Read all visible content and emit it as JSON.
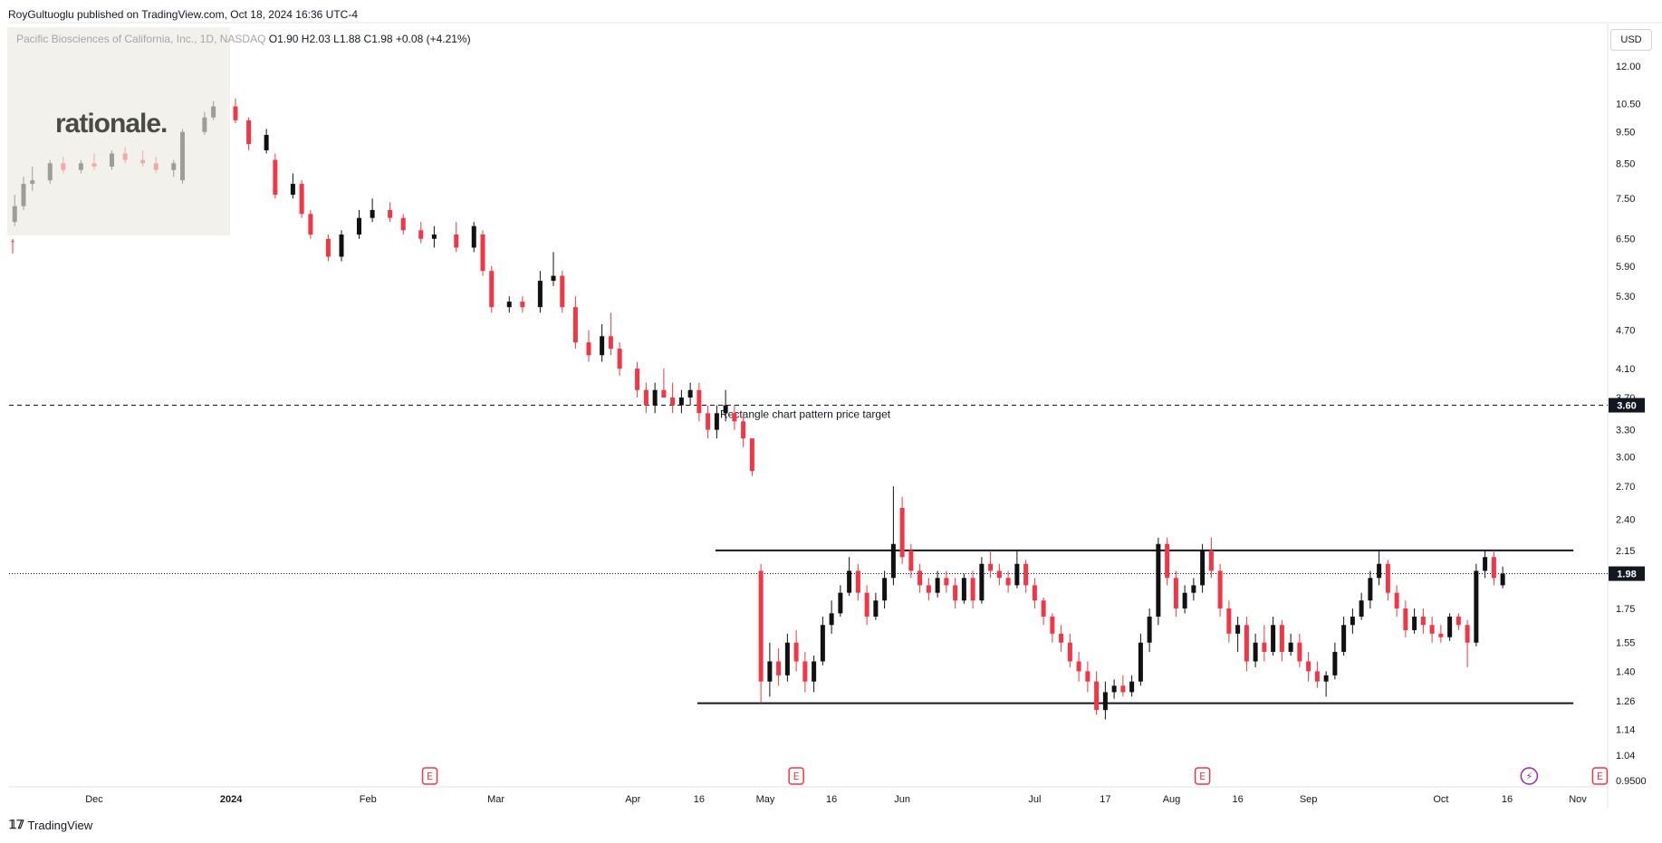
{
  "header": {
    "published_by": "RoyGultuoglu published on TradingView.com, Oct 18, 2024 16:36 UTC-4"
  },
  "symbol": {
    "name": "Pacific Biosciences of California, Inc., 1D, NASDAQ",
    "ohlc": "O1.90  H2.03  L1.88  C1.98  +0.08 (+4.21%)"
  },
  "logo": {
    "text": "rationale."
  },
  "currency": "USD",
  "footer": {
    "brand": "TradingView"
  },
  "colors": {
    "up": "#111111",
    "down": "#f23645",
    "watermark": "#ece9e1",
    "event_earnings": "#f23645",
    "event_dividend": "#9c27b0"
  },
  "chart_data": {
    "type": "candlestick",
    "title": "Pacific Biosciences of California, Inc., 1D, NASDAQ",
    "ylabel": "USD",
    "yscale": "log",
    "ylim": [
      0.95,
      12.6
    ],
    "price_ticks": [
      12.0,
      10.5,
      9.5,
      8.5,
      7.5,
      6.5,
      5.9,
      5.3,
      4.7,
      4.1,
      3.7,
      3.3,
      3.0,
      2.7,
      2.4,
      2.15,
      1.75,
      1.55,
      1.4,
      1.26,
      1.14,
      1.04,
      0.95
    ],
    "price_tick_labels": [
      "12.00",
      "10.50",
      "9.50",
      "8.50",
      "7.50",
      "6.50",
      "5.90",
      "5.30",
      "4.70",
      "4.10",
      "3.70",
      "3.30",
      "3.00",
      "2.70",
      "2.40",
      "2.15",
      "1.75",
      "1.55",
      "1.40",
      "1.26",
      "1.14",
      "1.04",
      "0.9500"
    ],
    "x_ticks": [
      "Dec",
      "2024",
      "Feb",
      "Mar",
      "Apr",
      "16",
      "May",
      "16",
      "Jun",
      "Jul",
      "17",
      "Aug",
      "16",
      "Sep",
      "Oct",
      "16",
      "Nov"
    ],
    "x_tick_dates": [
      "2023-12-01",
      "2024-01-01",
      "2024-02-01",
      "2024-03-01",
      "2024-04-01",
      "2024-04-16",
      "2024-05-01",
      "2024-05-16",
      "2024-06-01",
      "2024-07-01",
      "2024-07-17",
      "2024-08-01",
      "2024-08-16",
      "2024-09-01",
      "2024-10-01",
      "2024-10-16",
      "2024-11-01"
    ],
    "last_price": {
      "value": 1.98,
      "label": "1.98"
    },
    "target_line": {
      "value": 3.6,
      "label": "3.60",
      "annotation": "Rectangle chart pattern price target"
    },
    "rectangle": {
      "resistance": 2.15,
      "support": 1.25,
      "start": "2024-04-16",
      "end": "2024-10-31"
    },
    "candles": [
      {
        "date": "2023-11-13",
        "o": 6.9,
        "h": 7.6,
        "l": 6.8,
        "c": 7.3
      },
      {
        "date": "2023-11-15",
        "o": 7.3,
        "h": 8.1,
        "l": 7.2,
        "c": 7.9
      },
      {
        "date": "2023-11-17",
        "o": 7.9,
        "h": 8.4,
        "l": 7.7,
        "c": 8.0
      },
      {
        "date": "2023-11-21",
        "o": 8.0,
        "h": 8.6,
        "l": 7.9,
        "c": 8.5
      },
      {
        "date": "2023-11-24",
        "o": 8.5,
        "h": 8.7,
        "l": 8.2,
        "c": 8.3
      },
      {
        "date": "2023-11-28",
        "o": 8.3,
        "h": 8.6,
        "l": 8.2,
        "c": 8.5
      },
      {
        "date": "2023-12-01",
        "o": 8.5,
        "h": 8.8,
        "l": 8.3,
        "c": 8.4
      },
      {
        "date": "2023-12-05",
        "o": 8.4,
        "h": 8.9,
        "l": 8.3,
        "c": 8.8
      },
      {
        "date": "2023-12-08",
        "o": 8.8,
        "h": 9.0,
        "l": 8.5,
        "c": 8.6
      },
      {
        "date": "2023-12-12",
        "o": 8.6,
        "h": 8.9,
        "l": 8.4,
        "c": 8.5
      },
      {
        "date": "2023-12-15",
        "o": 8.5,
        "h": 8.7,
        "l": 8.2,
        "c": 8.3
      },
      {
        "date": "2023-12-19",
        "o": 8.3,
        "h": 8.6,
        "l": 8.1,
        "c": 8.5
      },
      {
        "date": "2023-12-21",
        "o": 8.0,
        "h": 9.6,
        "l": 7.9,
        "c": 9.5
      },
      {
        "date": "2023-12-26",
        "o": 9.5,
        "h": 10.2,
        "l": 9.4,
        "c": 10.0
      },
      {
        "date": "2023-12-28",
        "o": 10.0,
        "h": 10.6,
        "l": 9.9,
        "c": 10.4
      },
      {
        "date": "2024-01-02",
        "o": 10.4,
        "h": 10.7,
        "l": 9.8,
        "c": 9.9
      },
      {
        "date": "2024-01-05",
        "o": 9.9,
        "h": 10.0,
        "l": 8.9,
        "c": 9.1
      },
      {
        "date": "2024-01-09",
        "o": 8.9,
        "h": 9.6,
        "l": 8.8,
        "c": 9.4
      },
      {
        "date": "2024-01-11",
        "o": 8.6,
        "h": 8.8,
        "l": 7.5,
        "c": 7.6
      },
      {
        "date": "2024-01-15",
        "o": 7.6,
        "h": 8.2,
        "l": 7.5,
        "c": 7.9
      },
      {
        "date": "2024-01-17",
        "o": 7.9,
        "h": 8.0,
        "l": 7.0,
        "c": 7.1
      },
      {
        "date": "2024-01-19",
        "o": 7.1,
        "h": 7.2,
        "l": 6.5,
        "c": 6.6
      },
      {
        "date": "2024-01-23",
        "o": 6.5,
        "h": 6.6,
        "l": 6.0,
        "c": 6.1
      },
      {
        "date": "2024-01-26",
        "o": 6.1,
        "h": 6.7,
        "l": 6.0,
        "c": 6.6
      },
      {
        "date": "2024-01-30",
        "o": 6.6,
        "h": 7.2,
        "l": 6.5,
        "c": 7.0
      },
      {
        "date": "2024-02-02",
        "o": 7.0,
        "h": 7.5,
        "l": 6.9,
        "c": 7.2
      },
      {
        "date": "2024-02-06",
        "o": 7.2,
        "h": 7.4,
        "l": 6.9,
        "c": 7.0
      },
      {
        "date": "2024-02-09",
        "o": 7.0,
        "h": 7.1,
        "l": 6.6,
        "c": 6.7
      },
      {
        "date": "2024-02-13",
        "o": 6.7,
        "h": 6.9,
        "l": 6.4,
        "c": 6.5
      },
      {
        "date": "2024-02-16",
        "o": 6.5,
        "h": 6.8,
        "l": 6.3,
        "c": 6.6
      },
      {
        "date": "2024-02-21",
        "o": 6.6,
        "h": 6.9,
        "l": 6.2,
        "c": 6.3
      },
      {
        "date": "2024-02-25",
        "o": 6.3,
        "h": 6.9,
        "l": 6.2,
        "c": 6.8
      },
      {
        "date": "2024-02-27",
        "o": 6.6,
        "h": 6.7,
        "l": 5.7,
        "c": 5.8
      },
      {
        "date": "2024-02-29",
        "o": 5.8,
        "h": 5.9,
        "l": 5.0,
        "c": 5.1
      },
      {
        "date": "2024-03-04",
        "o": 5.1,
        "h": 5.3,
        "l": 5.0,
        "c": 5.2
      },
      {
        "date": "2024-03-07",
        "o": 5.2,
        "h": 5.3,
        "l": 5.0,
        "c": 5.1
      },
      {
        "date": "2024-03-11",
        "o": 5.1,
        "h": 5.8,
        "l": 5.0,
        "c": 5.6
      },
      {
        "date": "2024-03-14",
        "o": 5.6,
        "h": 6.2,
        "l": 5.5,
        "c": 5.7
      },
      {
        "date": "2024-03-16",
        "o": 5.7,
        "h": 5.8,
        "l": 5.0,
        "c": 5.1
      },
      {
        "date": "2024-03-19",
        "o": 5.1,
        "h": 5.3,
        "l": 4.4,
        "c": 4.5
      },
      {
        "date": "2024-03-22",
        "o": 4.5,
        "h": 4.7,
        "l": 4.2,
        "c": 4.3
      },
      {
        "date": "2024-03-25",
        "o": 4.3,
        "h": 4.8,
        "l": 4.2,
        "c": 4.6
      },
      {
        "date": "2024-03-27",
        "o": 4.6,
        "h": 5.0,
        "l": 4.3,
        "c": 4.4
      },
      {
        "date": "2024-03-29",
        "o": 4.4,
        "h": 4.5,
        "l": 4.0,
        "c": 4.1
      },
      {
        "date": "2024-04-02",
        "o": 4.1,
        "h": 4.2,
        "l": 3.7,
        "c": 3.8
      },
      {
        "date": "2024-04-04",
        "o": 3.8,
        "h": 3.9,
        "l": 3.5,
        "c": 3.6
      },
      {
        "date": "2024-04-06",
        "o": 3.6,
        "h": 3.9,
        "l": 3.5,
        "c": 3.8
      },
      {
        "date": "2024-04-08",
        "o": 3.8,
        "h": 4.1,
        "l": 3.7,
        "c": 3.7
      },
      {
        "date": "2024-04-10",
        "o": 3.7,
        "h": 3.9,
        "l": 3.5,
        "c": 3.6
      },
      {
        "date": "2024-04-12",
        "o": 3.6,
        "h": 3.8,
        "l": 3.5,
        "c": 3.7
      },
      {
        "date": "2024-04-14",
        "o": 3.7,
        "h": 3.9,
        "l": 3.6,
        "c": 3.8
      },
      {
        "date": "2024-04-16",
        "o": 3.8,
        "h": 3.9,
        "l": 3.4,
        "c": 3.5
      },
      {
        "date": "2024-04-18",
        "o": 3.5,
        "h": 3.6,
        "l": 3.2,
        "c": 3.3
      },
      {
        "date": "2024-04-20",
        "o": 3.3,
        "h": 3.6,
        "l": 3.2,
        "c": 3.5
      },
      {
        "date": "2024-04-22",
        "o": 3.5,
        "h": 3.8,
        "l": 3.4,
        "c": 3.6
      },
      {
        "date": "2024-04-24",
        "o": 3.5,
        "h": 3.6,
        "l": 3.3,
        "c": 3.4
      },
      {
        "date": "2024-04-26",
        "o": 3.4,
        "h": 3.5,
        "l": 3.1,
        "c": 3.2
      },
      {
        "date": "2024-04-28",
        "o": 3.2,
        "h": 3.2,
        "l": 2.8,
        "c": 2.85
      },
      {
        "date": "2024-04-30",
        "o": 2.0,
        "h": 2.05,
        "l": 1.25,
        "c": 1.35
      },
      {
        "date": "2024-05-02",
        "o": 1.35,
        "h": 1.55,
        "l": 1.28,
        "c": 1.45
      },
      {
        "date": "2024-05-04",
        "o": 1.45,
        "h": 1.52,
        "l": 1.33,
        "c": 1.38
      },
      {
        "date": "2024-05-06",
        "o": 1.38,
        "h": 1.6,
        "l": 1.35,
        "c": 1.55
      },
      {
        "date": "2024-05-08",
        "o": 1.55,
        "h": 1.62,
        "l": 1.4,
        "c": 1.45
      },
      {
        "date": "2024-05-10",
        "o": 1.45,
        "h": 1.5,
        "l": 1.3,
        "c": 1.35
      },
      {
        "date": "2024-05-12",
        "o": 1.35,
        "h": 1.48,
        "l": 1.3,
        "c": 1.45
      },
      {
        "date": "2024-05-14",
        "o": 1.45,
        "h": 1.7,
        "l": 1.43,
        "c": 1.65
      },
      {
        "date": "2024-05-16",
        "o": 1.65,
        "h": 1.8,
        "l": 1.6,
        "c": 1.72
      },
      {
        "date": "2024-05-18",
        "o": 1.72,
        "h": 1.9,
        "l": 1.7,
        "c": 1.85
      },
      {
        "date": "2024-05-20",
        "o": 1.85,
        "h": 2.1,
        "l": 1.83,
        "c": 2.0
      },
      {
        "date": "2024-05-22",
        "o": 2.0,
        "h": 2.05,
        "l": 1.8,
        "c": 1.85
      },
      {
        "date": "2024-05-24",
        "o": 1.85,
        "h": 1.9,
        "l": 1.65,
        "c": 1.7
      },
      {
        "date": "2024-05-26",
        "o": 1.7,
        "h": 1.85,
        "l": 1.68,
        "c": 1.8
      },
      {
        "date": "2024-05-28",
        "o": 1.8,
        "h": 2.0,
        "l": 1.75,
        "c": 1.95
      },
      {
        "date": "2024-05-30",
        "o": 1.95,
        "h": 2.7,
        "l": 1.9,
        "c": 2.2
      },
      {
        "date": "2024-06-01",
        "o": 2.5,
        "h": 2.6,
        "l": 2.05,
        "c": 2.1
      },
      {
        "date": "2024-06-03",
        "o": 2.15,
        "h": 2.2,
        "l": 1.95,
        "c": 2.0
      },
      {
        "date": "2024-06-05",
        "o": 2.0,
        "h": 2.05,
        "l": 1.85,
        "c": 1.9
      },
      {
        "date": "2024-06-07",
        "o": 1.9,
        "h": 1.95,
        "l": 1.8,
        "c": 1.85
      },
      {
        "date": "2024-06-09",
        "o": 1.85,
        "h": 2.0,
        "l": 1.82,
        "c": 1.95
      },
      {
        "date": "2024-06-11",
        "o": 1.95,
        "h": 2.0,
        "l": 1.85,
        "c": 1.9
      },
      {
        "date": "2024-06-13",
        "o": 1.9,
        "h": 1.95,
        "l": 1.75,
        "c": 1.8
      },
      {
        "date": "2024-06-15",
        "o": 1.8,
        "h": 1.98,
        "l": 1.78,
        "c": 1.95
      },
      {
        "date": "2024-06-17",
        "o": 1.95,
        "h": 2.0,
        "l": 1.75,
        "c": 1.8
      },
      {
        "date": "2024-06-19",
        "o": 1.8,
        "h": 2.1,
        "l": 1.78,
        "c": 2.05
      },
      {
        "date": "2024-06-21",
        "o": 2.05,
        "h": 2.15,
        "l": 1.95,
        "c": 2.0
      },
      {
        "date": "2024-06-23",
        "o": 2.0,
        "h": 2.05,
        "l": 1.9,
        "c": 1.95
      },
      {
        "date": "2024-06-25",
        "o": 1.95,
        "h": 2.0,
        "l": 1.85,
        "c": 1.9
      },
      {
        "date": "2024-06-27",
        "o": 1.9,
        "h": 2.15,
        "l": 1.88,
        "c": 2.05
      },
      {
        "date": "2024-06-29",
        "o": 2.05,
        "h": 2.08,
        "l": 1.85,
        "c": 1.9
      },
      {
        "date": "2024-07-01",
        "o": 1.9,
        "h": 1.95,
        "l": 1.75,
        "c": 1.8
      },
      {
        "date": "2024-07-03",
        "o": 1.8,
        "h": 1.82,
        "l": 1.65,
        "c": 1.7
      },
      {
        "date": "2024-07-05",
        "o": 1.7,
        "h": 1.72,
        "l": 1.55,
        "c": 1.6
      },
      {
        "date": "2024-07-07",
        "o": 1.6,
        "h": 1.65,
        "l": 1.5,
        "c": 1.55
      },
      {
        "date": "2024-07-09",
        "o": 1.55,
        "h": 1.6,
        "l": 1.42,
        "c": 1.45
      },
      {
        "date": "2024-07-11",
        "o": 1.45,
        "h": 1.5,
        "l": 1.35,
        "c": 1.4
      },
      {
        "date": "2024-07-13",
        "o": 1.4,
        "h": 1.45,
        "l": 1.3,
        "c": 1.35
      },
      {
        "date": "2024-07-15",
        "o": 1.35,
        "h": 1.4,
        "l": 1.2,
        "c": 1.22
      },
      {
        "date": "2024-07-17",
        "o": 1.22,
        "h": 1.35,
        "l": 1.18,
        "c": 1.3
      },
      {
        "date": "2024-07-19",
        "o": 1.3,
        "h": 1.36,
        "l": 1.27,
        "c": 1.33
      },
      {
        "date": "2024-07-21",
        "o": 1.33,
        "h": 1.38,
        "l": 1.28,
        "c": 1.3
      },
      {
        "date": "2024-07-23",
        "o": 1.3,
        "h": 1.38,
        "l": 1.28,
        "c": 1.35
      },
      {
        "date": "2024-07-25",
        "o": 1.35,
        "h": 1.6,
        "l": 1.33,
        "c": 1.55
      },
      {
        "date": "2024-07-27",
        "o": 1.55,
        "h": 1.75,
        "l": 1.5,
        "c": 1.7
      },
      {
        "date": "2024-07-29",
        "o": 1.7,
        "h": 2.25,
        "l": 1.65,
        "c": 2.2
      },
      {
        "date": "2024-07-31",
        "o": 2.2,
        "h": 2.25,
        "l": 1.9,
        "c": 1.95
      },
      {
        "date": "2024-08-02",
        "o": 1.95,
        "h": 2.0,
        "l": 1.7,
        "c": 1.75
      },
      {
        "date": "2024-08-04",
        "o": 1.75,
        "h": 1.9,
        "l": 1.72,
        "c": 1.85
      },
      {
        "date": "2024-08-06",
        "o": 1.85,
        "h": 1.95,
        "l": 1.8,
        "c": 1.9
      },
      {
        "date": "2024-08-08",
        "o": 1.9,
        "h": 2.2,
        "l": 1.85,
        "c": 2.15
      },
      {
        "date": "2024-08-10",
        "o": 2.15,
        "h": 2.25,
        "l": 1.95,
        "c": 2.0
      },
      {
        "date": "2024-08-12",
        "o": 2.0,
        "h": 2.05,
        "l": 1.7,
        "c": 1.75
      },
      {
        "date": "2024-08-14",
        "o": 1.75,
        "h": 1.8,
        "l": 1.55,
        "c": 1.6
      },
      {
        "date": "2024-08-16",
        "o": 1.6,
        "h": 1.7,
        "l": 1.5,
        "c": 1.65
      },
      {
        "date": "2024-08-18",
        "o": 1.65,
        "h": 1.7,
        "l": 1.4,
        "c": 1.45
      },
      {
        "date": "2024-08-20",
        "o": 1.45,
        "h": 1.6,
        "l": 1.42,
        "c": 1.55
      },
      {
        "date": "2024-08-22",
        "o": 1.55,
        "h": 1.65,
        "l": 1.45,
        "c": 1.5
      },
      {
        "date": "2024-08-24",
        "o": 1.5,
        "h": 1.7,
        "l": 1.48,
        "c": 1.65
      },
      {
        "date": "2024-08-26",
        "o": 1.65,
        "h": 1.68,
        "l": 1.45,
        "c": 1.5
      },
      {
        "date": "2024-08-28",
        "o": 1.5,
        "h": 1.6,
        "l": 1.48,
        "c": 1.55
      },
      {
        "date": "2024-08-30",
        "o": 1.55,
        "h": 1.6,
        "l": 1.42,
        "c": 1.45
      },
      {
        "date": "2024-09-01",
        "o": 1.45,
        "h": 1.5,
        "l": 1.35,
        "c": 1.4
      },
      {
        "date": "2024-09-03",
        "o": 1.4,
        "h": 1.45,
        "l": 1.32,
        "c": 1.35
      },
      {
        "date": "2024-09-05",
        "o": 1.35,
        "h": 1.4,
        "l": 1.28,
        "c": 1.38
      },
      {
        "date": "2024-09-07",
        "o": 1.38,
        "h": 1.55,
        "l": 1.36,
        "c": 1.5
      },
      {
        "date": "2024-09-09",
        "o": 1.5,
        "h": 1.7,
        "l": 1.48,
        "c": 1.65
      },
      {
        "date": "2024-09-11",
        "o": 1.65,
        "h": 1.75,
        "l": 1.6,
        "c": 1.7
      },
      {
        "date": "2024-09-13",
        "o": 1.7,
        "h": 1.85,
        "l": 1.68,
        "c": 1.8
      },
      {
        "date": "2024-09-15",
        "o": 1.8,
        "h": 2.0,
        "l": 1.75,
        "c": 1.95
      },
      {
        "date": "2024-09-17",
        "o": 1.95,
        "h": 2.15,
        "l": 1.9,
        "c": 2.05
      },
      {
        "date": "2024-09-19",
        "o": 2.05,
        "h": 2.08,
        "l": 1.8,
        "c": 1.85
      },
      {
        "date": "2024-09-21",
        "o": 1.85,
        "h": 1.9,
        "l": 1.7,
        "c": 1.75
      },
      {
        "date": "2024-09-23",
        "o": 1.75,
        "h": 1.8,
        "l": 1.58,
        "c": 1.62
      },
      {
        "date": "2024-09-25",
        "o": 1.62,
        "h": 1.75,
        "l": 1.6,
        "c": 1.7
      },
      {
        "date": "2024-09-27",
        "o": 1.7,
        "h": 1.75,
        "l": 1.6,
        "c": 1.65
      },
      {
        "date": "2024-09-29",
        "o": 1.65,
        "h": 1.7,
        "l": 1.55,
        "c": 1.6
      },
      {
        "date": "2024-10-01",
        "o": 1.6,
        "h": 1.65,
        "l": 1.55,
        "c": 1.58
      },
      {
        "date": "2024-10-03",
        "o": 1.58,
        "h": 1.72,
        "l": 1.56,
        "c": 1.7
      },
      {
        "date": "2024-10-05",
        "o": 1.7,
        "h": 1.72,
        "l": 1.62,
        "c": 1.65
      },
      {
        "date": "2024-10-07",
        "o": 1.65,
        "h": 1.68,
        "l": 1.42,
        "c": 1.55
      },
      {
        "date": "2024-10-09",
        "o": 1.55,
        "h": 2.05,
        "l": 1.53,
        "c": 2.0
      },
      {
        "date": "2024-10-11",
        "o": 2.0,
        "h": 2.15,
        "l": 1.95,
        "c": 2.1
      },
      {
        "date": "2024-10-13",
        "o": 2.1,
        "h": 2.15,
        "l": 1.9,
        "c": 1.95
      },
      {
        "date": "2024-10-15",
        "o": 1.9,
        "h": 2.03,
        "l": 1.88,
        "c": 1.98
      }
    ],
    "events": [
      {
        "type": "earnings",
        "date": "2024-02-15",
        "label": "E"
      },
      {
        "type": "earnings",
        "date": "2024-05-08",
        "label": "E"
      },
      {
        "type": "earnings",
        "date": "2024-08-08",
        "label": "E"
      },
      {
        "type": "dividend",
        "date": "2024-10-21",
        "label": "⚡"
      },
      {
        "type": "earnings",
        "date": "2024-11-06",
        "label": "E"
      }
    ]
  }
}
